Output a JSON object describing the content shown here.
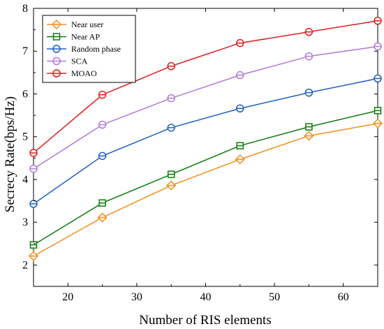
{
  "chart_data": {
    "type": "line",
    "title": "",
    "xlabel": "Number of RIS elements",
    "ylabel": "Secrecy Rate(bps/Hz)",
    "x": [
      15,
      25,
      35,
      45,
      55,
      65
    ],
    "xlim": [
      15,
      65
    ],
    "ylim": [
      1.5,
      8
    ],
    "xticks": [
      "20",
      "30",
      "40",
      "50",
      "60"
    ],
    "yticks": [
      "2",
      "3",
      "4",
      "5",
      "6",
      "7",
      "8"
    ],
    "grid": false,
    "legend_position": "top-left",
    "series": [
      {
        "name": "Near user",
        "color": "#f28e1c",
        "marker": "diamond",
        "values": [
          2.21,
          3.11,
          3.86,
          4.47,
          5.02,
          5.31
        ]
      },
      {
        "name": "Near AP",
        "color": "#0b7a0b",
        "marker": "square",
        "values": [
          2.47,
          3.45,
          4.12,
          4.79,
          5.23,
          5.61
        ]
      },
      {
        "name": "Random phase",
        "color": "#1f5fbf",
        "marker": "circle-h",
        "values": [
          3.43,
          4.55,
          5.21,
          5.66,
          6.03,
          6.36
        ]
      },
      {
        "name": "SCA",
        "color": "#b07ad8",
        "marker": "circle-h",
        "values": [
          4.25,
          5.28,
          5.9,
          6.44,
          6.88,
          7.11
        ]
      },
      {
        "name": "MOAO",
        "color": "#dd1c1c",
        "marker": "circle-h",
        "values": [
          4.62,
          5.98,
          6.65,
          7.19,
          7.45,
          7.71
        ]
      }
    ]
  }
}
